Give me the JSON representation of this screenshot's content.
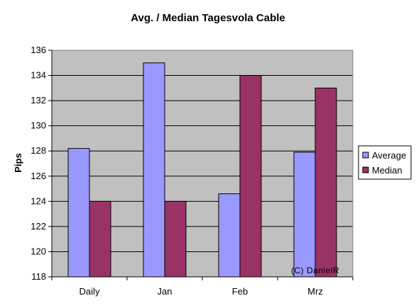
{
  "chart_data": {
    "type": "bar",
    "title": "Avg. / Median Tagesvola Cable",
    "xlabel": "",
    "ylabel": "Pips",
    "categories": [
      "Daily",
      "Jan",
      "Feb",
      "Mrz"
    ],
    "series": [
      {
        "name": "Average",
        "values": [
          128.2,
          135.0,
          124.6,
          127.9
        ],
        "color": "#9999ff"
      },
      {
        "name": "Median",
        "values": [
          124.0,
          124.0,
          134.0,
          133.0
        ],
        "color": "#993366"
      }
    ],
    "ylim": [
      118,
      136
    ],
    "yticks": [
      118,
      120,
      122,
      124,
      126,
      128,
      130,
      132,
      134,
      136
    ],
    "grid": true,
    "plot_background": "#c0c0c0",
    "legend_position": "right",
    "watermark": "(C) DanielR"
  }
}
